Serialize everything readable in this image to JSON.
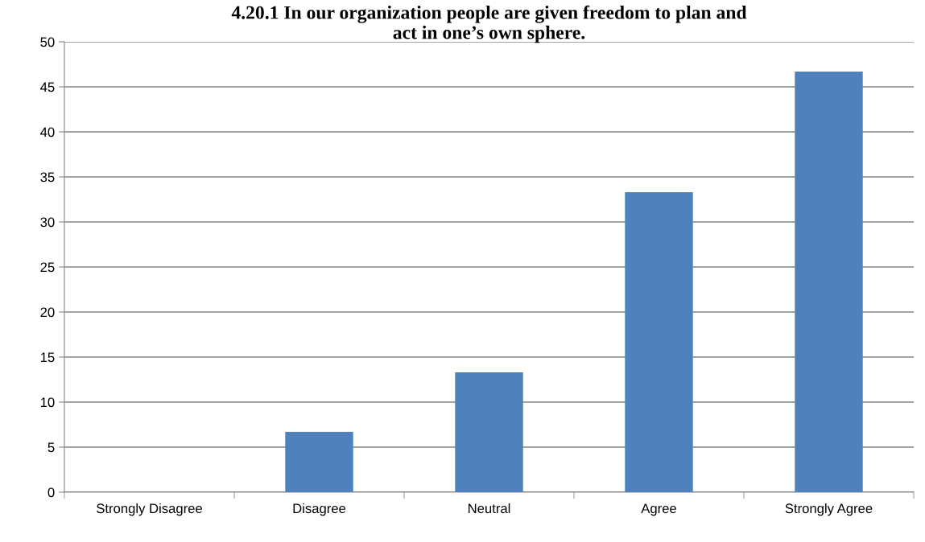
{
  "chart_data": {
    "type": "bar",
    "title": "4.20.1 In our organization people are given freedom to plan and\nact in one’s own sphere.",
    "categories": [
      "Strongly Disagree",
      "Disagree",
      "Neutral",
      "Agree",
      "Strongly Agree"
    ],
    "values": [
      0,
      6.7,
      13.3,
      33.3,
      46.7
    ],
    "color": "#4f81bd",
    "ylim": [
      0,
      50
    ],
    "yticks": [
      0,
      5,
      10,
      15,
      20,
      25,
      30,
      35,
      40,
      45,
      50
    ],
    "grid": "y",
    "legend": false
  }
}
